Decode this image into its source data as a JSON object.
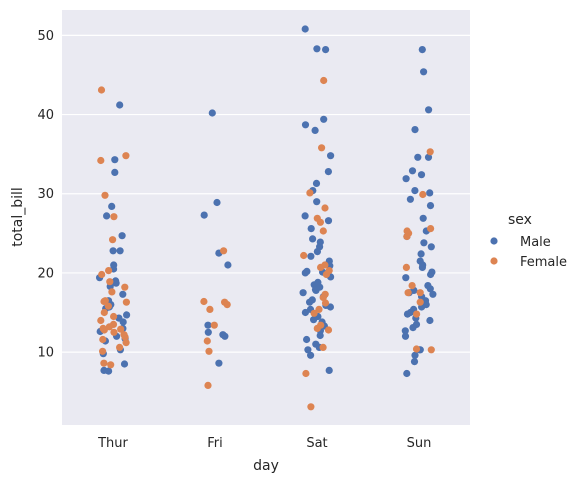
{
  "chart_data": {
    "type": "scatter",
    "subtype": "strip",
    "xlabel": "day",
    "ylabel": "total_bill",
    "categories": [
      "Thur",
      "Fri",
      "Sat",
      "Sun"
    ],
    "ylim": [
      0.8,
      53.2
    ],
    "yticks": [
      10,
      20,
      30,
      40,
      50
    ],
    "grid": true,
    "legend": {
      "title": "sex",
      "placement": "right",
      "entries": [
        {
          "name": "Male",
          "color": "#4c72b0"
        },
        {
          "name": "Female",
          "color": "#dd8452"
        }
      ]
    },
    "background_color": "#eaeaf2",
    "series": [
      {
        "name": "Male",
        "color": "#4c72b0",
        "points": [
          {
            "day": "Thur",
            "y": 41.2
          },
          {
            "day": "Thur",
            "y": 32.7
          },
          {
            "day": "Thur",
            "y": 28.4
          },
          {
            "day": "Thur",
            "y": 27.2
          },
          {
            "day": "Thur",
            "y": 24.7
          },
          {
            "day": "Thur",
            "y": 22.8
          },
          {
            "day": "Thur",
            "y": 22.8
          },
          {
            "day": "Thur",
            "y": 21.0
          },
          {
            "day": "Thur",
            "y": 20.5
          },
          {
            "day": "Thur",
            "y": 19.4
          },
          {
            "day": "Thur",
            "y": 19.0
          },
          {
            "day": "Thur",
            "y": 18.7
          },
          {
            "day": "Thur",
            "y": 18.3
          },
          {
            "day": "Thur",
            "y": 17.3
          },
          {
            "day": "Thur",
            "y": 16.5
          },
          {
            "day": "Thur",
            "y": 16.0
          },
          {
            "day": "Thur",
            "y": 15.5
          },
          {
            "day": "Thur",
            "y": 14.7
          },
          {
            "day": "Thur",
            "y": 14.3
          },
          {
            "day": "Thur",
            "y": 13.8
          },
          {
            "day": "Thur",
            "y": 13.0
          },
          {
            "day": "Thur",
            "y": 12.6
          },
          {
            "day": "Thur",
            "y": 12.0
          },
          {
            "day": "Thur",
            "y": 11.7
          },
          {
            "day": "Thur",
            "y": 11.4
          },
          {
            "day": "Thur",
            "y": 10.3
          },
          {
            "day": "Thur",
            "y": 9.8
          },
          {
            "day": "Thur",
            "y": 8.5
          },
          {
            "day": "Thur",
            "y": 7.7
          },
          {
            "day": "Thur",
            "y": 7.6
          },
          {
            "day": "Thur",
            "y": 34.3
          },
          {
            "day": "Thur",
            "y": 15.7
          },
          {
            "day": "Fri",
            "y": 40.2
          },
          {
            "day": "Fri",
            "y": 28.9
          },
          {
            "day": "Fri",
            "y": 27.3
          },
          {
            "day": "Fri",
            "y": 22.5
          },
          {
            "day": "Fri",
            "y": 21.0
          },
          {
            "day": "Fri",
            "y": 13.4
          },
          {
            "day": "Fri",
            "y": 12.5
          },
          {
            "day": "Fri",
            "y": 12.2
          },
          {
            "day": "Fri",
            "y": 12.0
          },
          {
            "day": "Fri",
            "y": 8.6
          },
          {
            "day": "Sat",
            "y": 50.8
          },
          {
            "day": "Sat",
            "y": 48.3
          },
          {
            "day": "Sat",
            "y": 48.2
          },
          {
            "day": "Sat",
            "y": 39.4
          },
          {
            "day": "Sat",
            "y": 38.7
          },
          {
            "day": "Sat",
            "y": 38.0
          },
          {
            "day": "Sat",
            "y": 34.8
          },
          {
            "day": "Sat",
            "y": 32.8
          },
          {
            "day": "Sat",
            "y": 31.3
          },
          {
            "day": "Sat",
            "y": 30.4
          },
          {
            "day": "Sat",
            "y": 29.0
          },
          {
            "day": "Sat",
            "y": 27.2
          },
          {
            "day": "Sat",
            "y": 26.6
          },
          {
            "day": "Sat",
            "y": 25.6
          },
          {
            "day": "Sat",
            "y": 24.3
          },
          {
            "day": "Sat",
            "y": 23.9
          },
          {
            "day": "Sat",
            "y": 23.3
          },
          {
            "day": "Sat",
            "y": 22.7
          },
          {
            "day": "Sat",
            "y": 22.1
          },
          {
            "day": "Sat",
            "y": 21.5
          },
          {
            "day": "Sat",
            "y": 20.9
          },
          {
            "day": "Sat",
            "y": 20.2
          },
          {
            "day": "Sat",
            "y": 20.1
          },
          {
            "day": "Sat",
            "y": 20.0
          },
          {
            "day": "Sat",
            "y": 19.5
          },
          {
            "day": "Sat",
            "y": 18.8
          },
          {
            "day": "Sat",
            "y": 18.5
          },
          {
            "day": "Sat",
            "y": 18.2
          },
          {
            "day": "Sat",
            "y": 17.9
          },
          {
            "day": "Sat",
            "y": 17.8
          },
          {
            "day": "Sat",
            "y": 17.5
          },
          {
            "day": "Sat",
            "y": 17.0
          },
          {
            "day": "Sat",
            "y": 16.6
          },
          {
            "day": "Sat",
            "y": 16.3
          },
          {
            "day": "Sat",
            "y": 15.9
          },
          {
            "day": "Sat",
            "y": 15.7
          },
          {
            "day": "Sat",
            "y": 15.4
          },
          {
            "day": "Sat",
            "y": 15.0
          },
          {
            "day": "Sat",
            "y": 14.5
          },
          {
            "day": "Sat",
            "y": 14.1
          },
          {
            "day": "Sat",
            "y": 13.8
          },
          {
            "day": "Sat",
            "y": 13.3
          },
          {
            "day": "Sat",
            "y": 12.7
          },
          {
            "day": "Sat",
            "y": 12.1
          },
          {
            "day": "Sat",
            "y": 11.6
          },
          {
            "day": "Sat",
            "y": 11.0
          },
          {
            "day": "Sat",
            "y": 10.6
          },
          {
            "day": "Sat",
            "y": 10.3
          },
          {
            "day": "Sat",
            "y": 9.6
          },
          {
            "day": "Sat",
            "y": 7.7
          },
          {
            "day": "Sun",
            "y": 48.2
          },
          {
            "day": "Sun",
            "y": 45.4
          },
          {
            "day": "Sun",
            "y": 40.6
          },
          {
            "day": "Sun",
            "y": 38.1
          },
          {
            "day": "Sun",
            "y": 34.6
          },
          {
            "day": "Sun",
            "y": 34.6
          },
          {
            "day": "Sun",
            "y": 32.9
          },
          {
            "day": "Sun",
            "y": 32.4
          },
          {
            "day": "Sun",
            "y": 31.9
          },
          {
            "day": "Sun",
            "y": 30.4
          },
          {
            "day": "Sun",
            "y": 30.1
          },
          {
            "day": "Sun",
            "y": 29.3
          },
          {
            "day": "Sun",
            "y": 28.5
          },
          {
            "day": "Sun",
            "y": 26.9
          },
          {
            "day": "Sun",
            "y": 25.3
          },
          {
            "day": "Sun",
            "y": 24.6
          },
          {
            "day": "Sun",
            "y": 23.8
          },
          {
            "day": "Sun",
            "y": 23.3
          },
          {
            "day": "Sun",
            "y": 22.4
          },
          {
            "day": "Sun",
            "y": 21.5
          },
          {
            "day": "Sun",
            "y": 21.0
          },
          {
            "day": "Sun",
            "y": 20.7
          },
          {
            "day": "Sun",
            "y": 20.1
          },
          {
            "day": "Sun",
            "y": 19.8
          },
          {
            "day": "Sun",
            "y": 19.4
          },
          {
            "day": "Sun",
            "y": 18.4
          },
          {
            "day": "Sun",
            "y": 18.0
          },
          {
            "day": "Sun",
            "y": 17.8
          },
          {
            "day": "Sun",
            "y": 17.5
          },
          {
            "day": "Sun",
            "y": 17.3
          },
          {
            "day": "Sun",
            "y": 17.0
          },
          {
            "day": "Sun",
            "y": 16.5
          },
          {
            "day": "Sun",
            "y": 16.3
          },
          {
            "day": "Sun",
            "y": 16.0
          },
          {
            "day": "Sun",
            "y": 15.7
          },
          {
            "day": "Sun",
            "y": 15.4
          },
          {
            "day": "Sun",
            "y": 15.0
          },
          {
            "day": "Sun",
            "y": 14.8
          },
          {
            "day": "Sun",
            "y": 14.3
          },
          {
            "day": "Sun",
            "y": 14.0
          },
          {
            "day": "Sun",
            "y": 13.5
          },
          {
            "day": "Sun",
            "y": 13.1
          },
          {
            "day": "Sun",
            "y": 12.7
          },
          {
            "day": "Sun",
            "y": 12.0
          },
          {
            "day": "Sun",
            "y": 10.3
          },
          {
            "day": "Sun",
            "y": 10.3
          },
          {
            "day": "Sun",
            "y": 9.6
          },
          {
            "day": "Sun",
            "y": 8.8
          },
          {
            "day": "Sun",
            "y": 7.3
          }
        ]
      },
      {
        "name": "Female",
        "color": "#dd8452",
        "points": [
          {
            "day": "Thur",
            "y": 43.1
          },
          {
            "day": "Thur",
            "y": 34.8
          },
          {
            "day": "Thur",
            "y": 34.2
          },
          {
            "day": "Thur",
            "y": 29.8
          },
          {
            "day": "Thur",
            "y": 27.1
          },
          {
            "day": "Thur",
            "y": 24.2
          },
          {
            "day": "Thur",
            "y": 20.3
          },
          {
            "day": "Thur",
            "y": 19.8
          },
          {
            "day": "Thur",
            "y": 18.9
          },
          {
            "day": "Thur",
            "y": 18.2
          },
          {
            "day": "Thur",
            "y": 17.6
          },
          {
            "day": "Thur",
            "y": 16.5
          },
          {
            "day": "Thur",
            "y": 16.4
          },
          {
            "day": "Thur",
            "y": 16.3
          },
          {
            "day": "Thur",
            "y": 15.8
          },
          {
            "day": "Thur",
            "y": 15.0
          },
          {
            "day": "Thur",
            "y": 14.5
          },
          {
            "day": "Thur",
            "y": 14.0
          },
          {
            "day": "Thur",
            "y": 13.5
          },
          {
            "day": "Thur",
            "y": 13.2
          },
          {
            "day": "Thur",
            "y": 13.0
          },
          {
            "day": "Thur",
            "y": 12.9
          },
          {
            "day": "Thur",
            "y": 12.8
          },
          {
            "day": "Thur",
            "y": 12.5
          },
          {
            "day": "Thur",
            "y": 12.2
          },
          {
            "day": "Thur",
            "y": 11.9
          },
          {
            "day": "Thur",
            "y": 11.6
          },
          {
            "day": "Thur",
            "y": 11.2
          },
          {
            "day": "Thur",
            "y": 10.6
          },
          {
            "day": "Thur",
            "y": 10.1
          },
          {
            "day": "Thur",
            "y": 8.6
          },
          {
            "day": "Thur",
            "y": 8.4
          },
          {
            "day": "Fri",
            "y": 22.8
          },
          {
            "day": "Fri",
            "y": 16.4
          },
          {
            "day": "Fri",
            "y": 16.3
          },
          {
            "day": "Fri",
            "y": 16.0
          },
          {
            "day": "Fri",
            "y": 15.4
          },
          {
            "day": "Fri",
            "y": 13.4
          },
          {
            "day": "Fri",
            "y": 11.4
          },
          {
            "day": "Fri",
            "y": 10.1
          },
          {
            "day": "Fri",
            "y": 5.8
          },
          {
            "day": "Sat",
            "y": 44.3
          },
          {
            "day": "Sat",
            "y": 35.8
          },
          {
            "day": "Sat",
            "y": 30.1
          },
          {
            "day": "Sat",
            "y": 28.2
          },
          {
            "day": "Sat",
            "y": 26.9
          },
          {
            "day": "Sat",
            "y": 26.4
          },
          {
            "day": "Sat",
            "y": 25.3
          },
          {
            "day": "Sat",
            "y": 22.2
          },
          {
            "day": "Sat",
            "y": 21.0
          },
          {
            "day": "Sat",
            "y": 20.7
          },
          {
            "day": "Sat",
            "y": 20.3
          },
          {
            "day": "Sat",
            "y": 19.8
          },
          {
            "day": "Sat",
            "y": 17.3
          },
          {
            "day": "Sat",
            "y": 16.9
          },
          {
            "day": "Sat",
            "y": 16.2
          },
          {
            "day": "Sat",
            "y": 15.4
          },
          {
            "day": "Sat",
            "y": 14.9
          },
          {
            "day": "Sat",
            "y": 13.4
          },
          {
            "day": "Sat",
            "y": 13.0
          },
          {
            "day": "Sat",
            "y": 12.8
          },
          {
            "day": "Sat",
            "y": 10.6
          },
          {
            "day": "Sat",
            "y": 7.3
          },
          {
            "day": "Sat",
            "y": 3.1
          },
          {
            "day": "Sun",
            "y": 35.3
          },
          {
            "day": "Sun",
            "y": 29.9
          },
          {
            "day": "Sun",
            "y": 25.6
          },
          {
            "day": "Sun",
            "y": 25.3
          },
          {
            "day": "Sun",
            "y": 25.0
          },
          {
            "day": "Sun",
            "y": 24.6
          },
          {
            "day": "Sun",
            "y": 20.7
          },
          {
            "day": "Sun",
            "y": 18.4
          },
          {
            "day": "Sun",
            "y": 17.5
          },
          {
            "day": "Sun",
            "y": 16.3
          },
          {
            "day": "Sun",
            "y": 14.8
          },
          {
            "day": "Sun",
            "y": 10.4
          },
          {
            "day": "Sun",
            "y": 10.3
          },
          {
            "day": "Sun",
            "y": 17.5
          }
        ]
      }
    ]
  }
}
